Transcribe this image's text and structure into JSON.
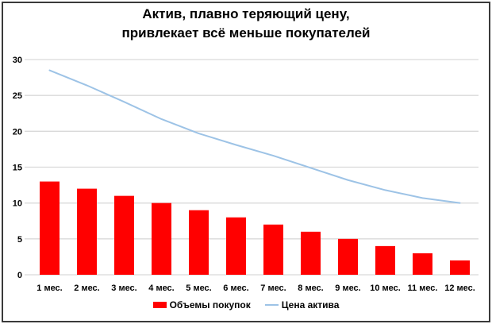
{
  "window": {
    "background": "#FFFFFF",
    "frame_border_color": "#3A3A3A"
  },
  "chart_data": {
    "type": "bar",
    "title_line1": "Актив, плавно теряющий цену,",
    "title_line2": "привлекает всё меньше покупателей",
    "categories": [
      "1 мес.",
      "2 мес.",
      "3 мес.",
      "4 мес.",
      "5 мес.",
      "6 мес.",
      "7 мес.",
      "8 мес.",
      "9 мес.",
      "10 мес.",
      "11 мес.",
      "12 мес."
    ],
    "series": [
      {
        "name": "Объемы покупок",
        "type": "bar",
        "color": "#FF0000",
        "values": [
          13,
          12,
          11,
          10,
          9,
          8,
          7,
          6,
          5,
          4,
          3,
          2
        ]
      },
      {
        "name": "Цена актива",
        "type": "line",
        "color": "#9DC3E6",
        "values": [
          28.5,
          26.4,
          24.1,
          21.7,
          19.7,
          18.1,
          16.6,
          14.9,
          13.2,
          11.8,
          10.7,
          10
        ]
      }
    ],
    "xlabel": "",
    "ylabel": "",
    "ylim": [
      0,
      30
    ],
    "yticks": [
      0,
      5,
      10,
      15,
      20,
      25,
      30
    ],
    "grid": true,
    "grid_color": "#D9D9D9",
    "axis_text_color": "#000000",
    "legend_position": "bottom"
  }
}
